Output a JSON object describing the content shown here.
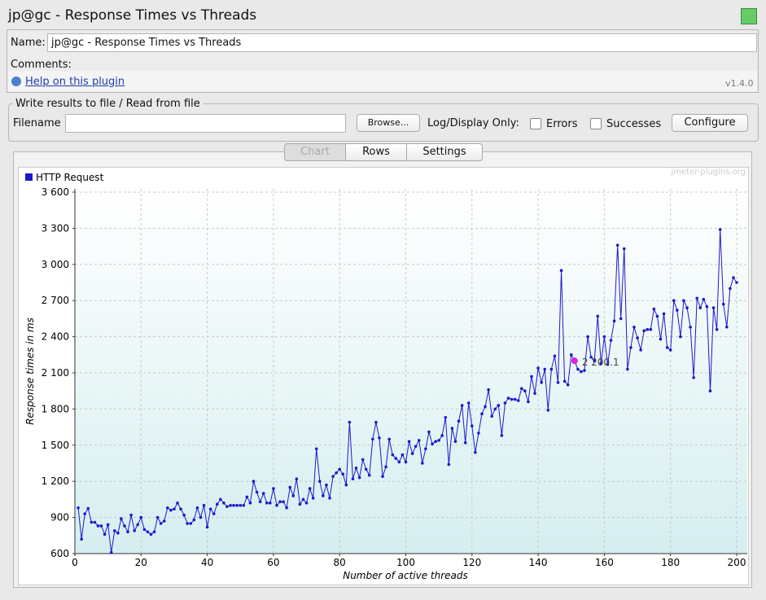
{
  "window": {
    "title": "jp@gc - Response Times vs Threads"
  },
  "info": {
    "name_label": "Name:",
    "name_value": "jp@gc - Response Times vs Threads",
    "comments_label": "Comments:",
    "help_link": "Help on this plugin",
    "version": "v1.4.0"
  },
  "file_panel": {
    "legend": "Write results to file / Read from file",
    "filename_label": "Filename",
    "browse": "Browse...",
    "log_label": "Log/Display Only:",
    "errors": "Errors",
    "successes": "Successes",
    "configure": "Configure"
  },
  "tabs": [
    "Chart",
    "Rows",
    "Settings"
  ],
  "chart_data": {
    "type": "line",
    "watermark": "jmeter-plugins.org",
    "xlabel": "Number of active threads",
    "ylabel": "Response times in ms",
    "xlim": [
      0,
      200
    ],
    "xticks": [
      0,
      20,
      40,
      60,
      80,
      100,
      120,
      140,
      160,
      180,
      200
    ],
    "ylim": [
      600,
      3600
    ],
    "yticks": [
      600,
      900,
      {
        "value": 1200,
        "label": "1 200"
      },
      {
        "value": 1500,
        "label": "1 500"
      },
      {
        "value": 1800,
        "label": "1 800"
      },
      {
        "value": 2100,
        "label": "2 100"
      },
      {
        "value": 2400,
        "label": "2 400"
      },
      {
        "value": 2700,
        "label": "2 700"
      },
      {
        "value": 3000,
        "label": "3 000"
      },
      {
        "value": 3300,
        "label": "3 300"
      },
      {
        "value": 3600,
        "label": "3 600"
      }
    ],
    "grid": true,
    "legend": "top-left",
    "annotations": [
      {
        "x": 151,
        "y": 2200.1,
        "text": "2 200.1",
        "color": "#e020e0"
      }
    ],
    "series": [
      {
        "name": "HTTP Request",
        "color": "#1a1acc",
        "x": [
          1,
          2,
          3,
          4,
          5,
          6,
          7,
          8,
          9,
          10,
          11,
          12,
          13,
          14,
          15,
          16,
          17,
          18,
          19,
          20,
          21,
          22,
          23,
          24,
          25,
          26,
          27,
          28,
          29,
          30,
          31,
          32,
          33,
          34,
          35,
          36,
          37,
          38,
          39,
          40,
          41,
          42,
          43,
          44,
          45,
          46,
          47,
          48,
          49,
          50,
          51,
          52,
          53,
          54,
          55,
          56,
          57,
          58,
          59,
          60,
          61,
          62,
          63,
          64,
          65,
          66,
          67,
          68,
          69,
          70,
          71,
          72,
          73,
          74,
          75,
          76,
          77,
          78,
          79,
          80,
          81,
          82,
          83,
          84,
          85,
          86,
          87,
          88,
          89,
          90,
          91,
          92,
          93,
          94,
          95,
          96,
          97,
          98,
          99,
          100,
          101,
          102,
          103,
          104,
          105,
          106,
          107,
          108,
          109,
          110,
          111,
          112,
          113,
          114,
          115,
          116,
          117,
          118,
          119,
          120,
          121,
          122,
          123,
          124,
          125,
          126,
          127,
          128,
          129,
          130,
          131,
          132,
          133,
          134,
          135,
          136,
          137,
          138,
          139,
          140,
          141,
          142,
          143,
          144,
          145,
          146,
          147,
          148,
          149,
          150,
          151,
          152,
          153,
          154,
          155,
          156,
          157,
          158,
          159,
          160,
          161,
          162,
          163,
          164,
          165,
          166,
          167,
          168,
          169,
          170,
          171,
          172,
          173,
          174,
          175,
          176,
          177,
          178,
          179,
          180,
          181,
          182,
          183,
          184,
          185,
          186,
          187,
          188,
          189,
          190,
          191,
          192,
          193,
          194,
          195,
          196,
          197,
          198,
          199,
          200
        ],
        "values": [
          980,
          720,
          930,
          975,
          860,
          860,
          830,
          830,
          760,
          840,
          610,
          790,
          770,
          890,
          830,
          780,
          920,
          790,
          840,
          900,
          800,
          780,
          760,
          780,
          900,
          850,
          870,
          980,
          960,
          970,
          1020,
          970,
          920,
          850,
          850,
          880,
          980,
          900,
          1000,
          820,
          970,
          930,
          1010,
          1050,
          1020,
          990,
          1000,
          1000,
          1000,
          1000,
          1000,
          1070,
          1020,
          1200,
          1110,
          1030,
          1100,
          1020,
          1020,
          1140,
          1000,
          1030,
          1030,
          980,
          1150,
          1080,
          1220,
          1010,
          1050,
          1020,
          1140,
          1060,
          1470,
          1200,
          1080,
          1170,
          1060,
          1240,
          1270,
          1300,
          1260,
          1170,
          1690,
          1220,
          1310,
          1230,
          1380,
          1300,
          1250,
          1550,
          1690,
          1560,
          1240,
          1320,
          1550,
          1420,
          1390,
          1360,
          1420,
          1360,
          1530,
          1430,
          1490,
          1540,
          1350,
          1470,
          1610,
          1510,
          1530,
          1540,
          1580,
          1730,
          1340,
          1640,
          1530,
          1700,
          1830,
          1520,
          1850,
          1660,
          1440,
          1600,
          1760,
          1820,
          1960,
          1740,
          1800,
          1830,
          1580,
          1850,
          1890,
          1880,
          1880,
          1870,
          1970,
          1950,
          1860,
          2070,
          1930,
          2140,
          2020,
          2130,
          1790,
          2130,
          2240,
          2020,
          2950,
          2030,
          2000,
          2250,
          2200.1,
          2130,
          2110,
          2120,
          2400,
          2230,
          2200,
          2570,
          2180,
          2400,
          2170,
          2370,
          2530,
          3160,
          2550,
          3130,
          2130,
          2310,
          2480,
          2390,
          2290,
          2450,
          2460,
          2460,
          2630,
          2570,
          2380,
          2590,
          2310,
          2290,
          2700,
          2620,
          2400,
          2700,
          2640,
          2480,
          2060,
          2720,
          2640,
          2710,
          2650,
          1950,
          2640,
          2460,
          3290,
          2670,
          2480,
          2800,
          2890,
          2850
        ]
      }
    ]
  }
}
